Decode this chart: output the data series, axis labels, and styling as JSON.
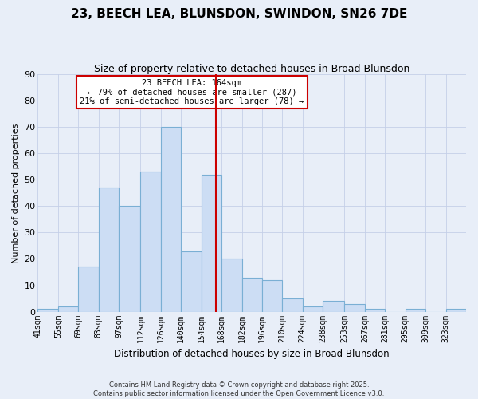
{
  "title": "23, BEECH LEA, BLUNSDON, SWINDON, SN26 7DE",
  "subtitle": "Size of property relative to detached houses in Broad Blunsdon",
  "xlabel": "Distribution of detached houses by size in Broad Blunsdon",
  "ylabel": "Number of detached properties",
  "bin_labels": [
    "41sqm",
    "55sqm",
    "69sqm",
    "83sqm",
    "97sqm",
    "112sqm",
    "126sqm",
    "140sqm",
    "154sqm",
    "168sqm",
    "182sqm",
    "196sqm",
    "210sqm",
    "224sqm",
    "238sqm",
    "253sqm",
    "267sqm",
    "281sqm",
    "295sqm",
    "309sqm",
    "323sqm"
  ],
  "bin_edges": [
    41,
    55,
    69,
    83,
    97,
    112,
    126,
    140,
    154,
    168,
    182,
    196,
    210,
    224,
    238,
    253,
    267,
    281,
    295,
    309,
    323,
    337
  ],
  "bar_heights": [
    1,
    2,
    17,
    47,
    40,
    53,
    70,
    23,
    52,
    20,
    13,
    12,
    5,
    2,
    4,
    3,
    1,
    0,
    1,
    0,
    1
  ],
  "bar_color": "#ccddf4",
  "bar_edge_color": "#7aafd4",
  "vline_x": 164,
  "vline_color": "#cc0000",
  "ylim": [
    0,
    90
  ],
  "yticks": [
    0,
    10,
    20,
    30,
    40,
    50,
    60,
    70,
    80,
    90
  ],
  "annotation_title": "23 BEECH LEA: 164sqm",
  "annotation_line1": "← 79% of detached houses are smaller (287)",
  "annotation_line2": "21% of semi-detached houses are larger (78) →",
  "annotation_box_facecolor": "#ffffff",
  "annotation_box_edgecolor": "#cc0000",
  "footer_line1": "Contains HM Land Registry data © Crown copyright and database right 2025.",
  "footer_line2": "Contains public sector information licensed under the Open Government Licence v3.0.",
  "background_color": "#e8eef8",
  "grid_color": "#c5cfe8",
  "title_fontsize": 11,
  "subtitle_fontsize": 9,
  "ylabel_fontsize": 8,
  "xlabel_fontsize": 8.5,
  "tick_fontsize": 7,
  "annot_fontsize": 7.5,
  "footer_fontsize": 6
}
